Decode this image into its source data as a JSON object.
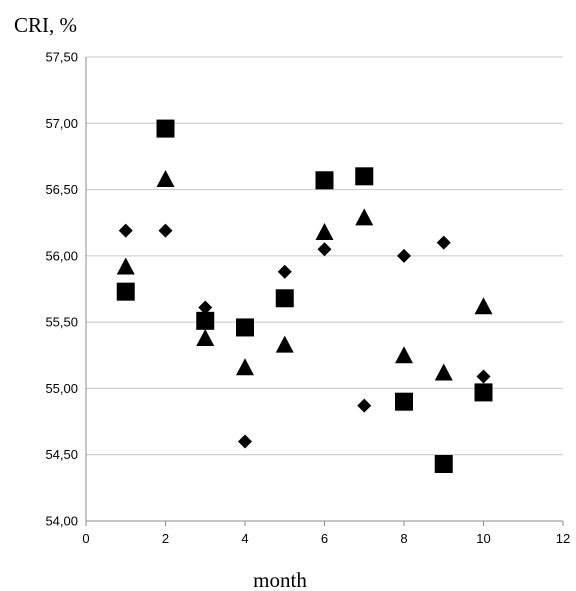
{
  "chart_data": {
    "type": "scatter",
    "ylabel": "CRI, %",
    "xlabel": "month",
    "xlim": [
      0,
      12
    ],
    "ylim": [
      54.0,
      57.5
    ],
    "x_ticks": [
      "0",
      "2",
      "4",
      "6",
      "8",
      "10",
      "12"
    ],
    "y_ticks": [
      "54,00",
      "54,50",
      "55,00",
      "55,50",
      "56,00",
      "56,50",
      "57,00",
      "57,50"
    ],
    "grid": "horizontal",
    "legend": "none",
    "marker_color": "#000000",
    "series": [
      {
        "marker": "diamond",
        "points": [
          [
            1,
            56.19
          ],
          [
            2,
            56.19
          ],
          [
            3,
            55.61
          ],
          [
            4,
            54.6
          ],
          [
            5,
            55.88
          ],
          [
            6,
            56.05
          ],
          [
            7,
            54.87
          ],
          [
            8,
            56.0
          ],
          [
            9,
            56.1
          ],
          [
            10,
            55.09
          ]
        ]
      },
      {
        "marker": "square",
        "points": [
          [
            1,
            55.73
          ],
          [
            2,
            56.96
          ],
          [
            3,
            55.51
          ],
          [
            4,
            55.46
          ],
          [
            5,
            55.68
          ],
          [
            6,
            56.57
          ],
          [
            7,
            56.6
          ],
          [
            8,
            54.9
          ],
          [
            9,
            54.43
          ],
          [
            10,
            54.97
          ]
        ]
      },
      {
        "marker": "triangle",
        "points": [
          [
            1,
            55.92
          ],
          [
            2,
            56.58
          ],
          [
            3,
            55.38
          ],
          [
            4,
            55.16
          ],
          [
            5,
            55.33
          ],
          [
            6,
            56.18
          ],
          [
            7,
            56.29
          ],
          [
            8,
            55.25
          ],
          [
            9,
            55.12
          ],
          [
            10,
            55.62
          ]
        ]
      }
    ]
  }
}
